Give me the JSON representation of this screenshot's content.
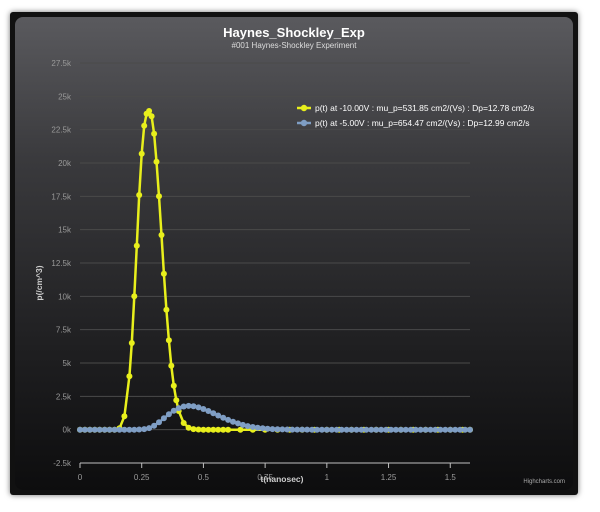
{
  "chart_data": {
    "type": "line",
    "title": "Haynes_Shockley_Exp",
    "subtitle": "#001 Haynes-Shockley Experiment",
    "xlabel": "t(nanosec)",
    "ylabel": "p(/cm^3)",
    "xlim": [
      0,
      1.58
    ],
    "ylim": [
      -2500,
      27500
    ],
    "x_ticks": [
      0,
      0.25,
      0.5,
      0.75,
      1,
      1.25,
      1.5
    ],
    "x_tick_labels": [
      "0",
      "0.25",
      "0.5",
      "0.75",
      "1",
      "1.25",
      "1.5"
    ],
    "y_ticks": [
      -2500,
      0,
      2500,
      5000,
      7500,
      10000,
      12500,
      15000,
      17500,
      20000,
      22500,
      25000,
      27500
    ],
    "y_tick_labels": [
      "-2.5k",
      "0k",
      "2.5k",
      "5k",
      "7.5k",
      "10k",
      "12.5k",
      "15k",
      "17.5k",
      "20k",
      "22.5k",
      "25k",
      "27.5k"
    ],
    "legend_position": "top-right",
    "grid": true,
    "series": [
      {
        "name": "p(t) at -10.00V : mu_p=531.85 cm2/(Vs) : Dp=12.78 cm2/s",
        "color": "#e8ef1c",
        "marker": "circle",
        "x": [
          0,
          0.02,
          0.04,
          0.06,
          0.08,
          0.1,
          0.12,
          0.14,
          0.16,
          0.18,
          0.2,
          0.21,
          0.22,
          0.23,
          0.24,
          0.25,
          0.26,
          0.27,
          0.28,
          0.29,
          0.3,
          0.31,
          0.32,
          0.33,
          0.34,
          0.35,
          0.36,
          0.37,
          0.38,
          0.39,
          0.4,
          0.42,
          0.44,
          0.46,
          0.48,
          0.5,
          0.52,
          0.54,
          0.56,
          0.58,
          0.6,
          0.65,
          0.7,
          0.75,
          0.8,
          0.85,
          0.9,
          0.95,
          1.0,
          1.05,
          1.1,
          1.15,
          1.2,
          1.25,
          1.3,
          1.35,
          1.4,
          1.45,
          1.5,
          1.55,
          1.58
        ],
        "y": [
          0,
          0,
          0,
          0,
          0,
          0,
          0,
          0,
          100,
          1000,
          4000,
          6500,
          10000,
          13800,
          17600,
          20700,
          22800,
          23700,
          23900,
          23500,
          22200,
          20100,
          17500,
          14600,
          11700,
          9000,
          6700,
          4800,
          3300,
          2200,
          1400,
          500,
          150,
          40,
          10,
          0,
          0,
          0,
          0,
          0,
          0,
          0,
          0,
          0,
          0,
          0,
          0,
          0,
          0,
          0,
          0,
          0,
          0,
          0,
          0,
          0,
          0,
          0,
          0,
          0,
          0
        ]
      },
      {
        "name": "p(t) at -5.00V : mu_p=654.47 cm2/(Vs) : Dp=12.99 cm2/s",
        "color": "#7f9ec4",
        "marker": "circle",
        "x": [
          0,
          0.02,
          0.04,
          0.06,
          0.08,
          0.1,
          0.12,
          0.14,
          0.16,
          0.18,
          0.2,
          0.22,
          0.24,
          0.26,
          0.28,
          0.3,
          0.32,
          0.34,
          0.36,
          0.38,
          0.4,
          0.42,
          0.44,
          0.46,
          0.48,
          0.5,
          0.52,
          0.54,
          0.56,
          0.58,
          0.6,
          0.62,
          0.64,
          0.66,
          0.68,
          0.7,
          0.72,
          0.74,
          0.76,
          0.78,
          0.8,
          0.82,
          0.84,
          0.86,
          0.88,
          0.9,
          0.92,
          0.94,
          0.96,
          0.98,
          1.0,
          1.02,
          1.04,
          1.06,
          1.08,
          1.1,
          1.12,
          1.14,
          1.16,
          1.18,
          1.2,
          1.22,
          1.24,
          1.26,
          1.28,
          1.3,
          1.32,
          1.34,
          1.36,
          1.38,
          1.4,
          1.42,
          1.44,
          1.46,
          1.48,
          1.5,
          1.52,
          1.54,
          1.56,
          1.58
        ],
        "y": [
          0,
          0,
          0,
          0,
          0,
          0,
          0,
          0,
          0,
          0,
          0,
          0,
          10,
          40,
          120,
          300,
          550,
          850,
          1150,
          1420,
          1620,
          1740,
          1780,
          1750,
          1670,
          1550,
          1400,
          1230,
          1060,
          890,
          730,
          590,
          470,
          360,
          270,
          200,
          140,
          100,
          70,
          45,
          30,
          20,
          12,
          8,
          5,
          3,
          2,
          1,
          0,
          0,
          0,
          0,
          0,
          0,
          0,
          0,
          0,
          0,
          0,
          0,
          0,
          0,
          0,
          0,
          0,
          0,
          0,
          0,
          0,
          0,
          0,
          0,
          0,
          0,
          0,
          0,
          0,
          0,
          0,
          0
        ]
      }
    ]
  },
  "credits": "Highcharts.com"
}
